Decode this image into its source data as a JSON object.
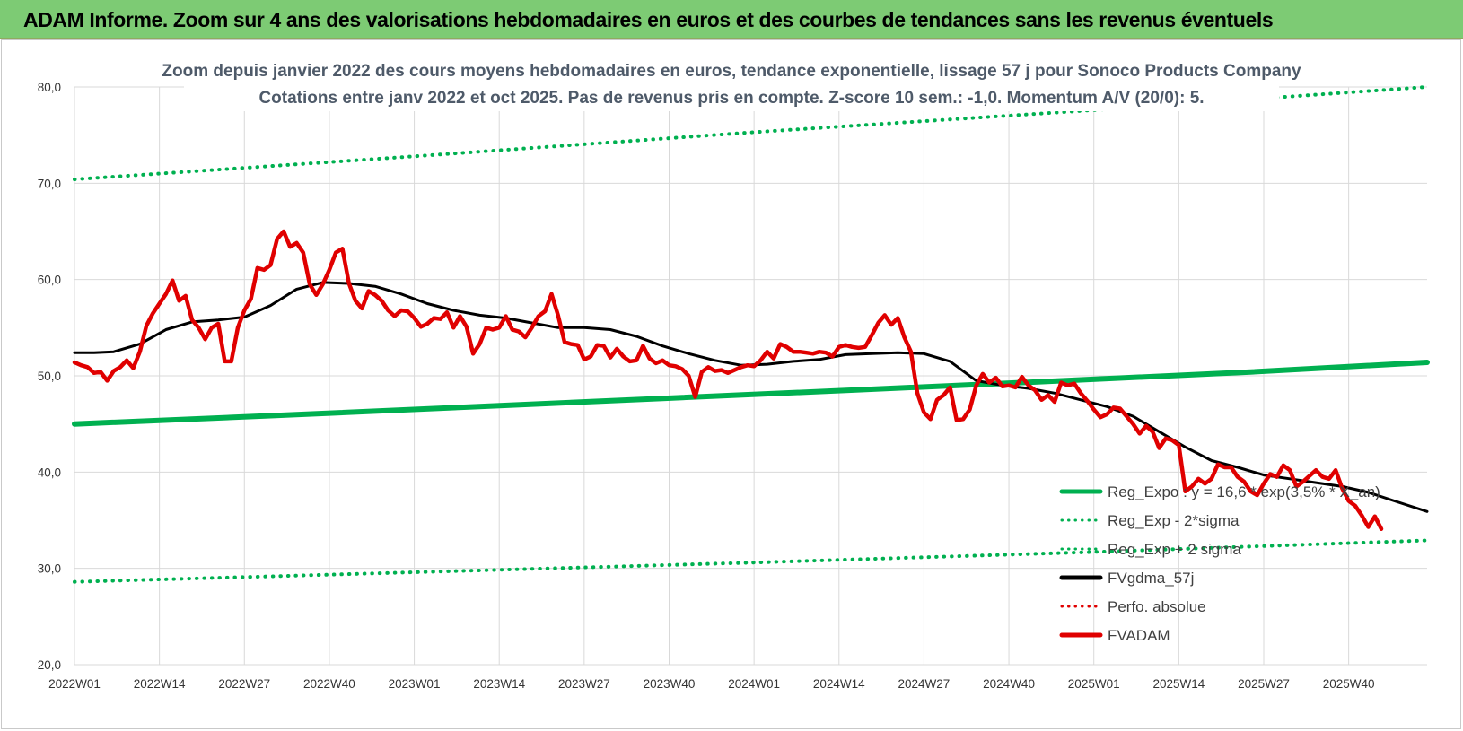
{
  "header": {
    "title": "ADAM Informe. Zoom sur 4 ans des valorisations hebdomadaires en euros et des courbes de tendances sans les revenus éventuels"
  },
  "chart_data": {
    "type": "line",
    "title": "Zoom depuis janvier 2022 des cours moyens hebdomadaires en euros, tendance exponentielle, lissage 57 j pour Sonoco Products Company",
    "subtitle": "Cotations entre janv 2022 et oct 2025. Pas de revenus pris en compte. Z-score 10 sem.: -1,0. Momentum A/V (20/0): 5.",
    "xlabel": "",
    "ylabel": "",
    "ylim": [
      20,
      80
    ],
    "y_ticks": [
      "20,0",
      "30,0",
      "40,0",
      "50,0",
      "60,0",
      "70,0",
      "80,0"
    ],
    "x_ticks": [
      "2022W01",
      "2022W14",
      "2022W27",
      "2022W40",
      "2023W01",
      "2023W14",
      "2023W27",
      "2023W40",
      "2024W01",
      "2024W14",
      "2024W27",
      "2024W40",
      "2025W01",
      "2025W14",
      "2025W27",
      "2025W40"
    ],
    "grid": true,
    "legend_position": "bottom-right",
    "legend": [
      {
        "label": "Reg_Expo : y = 16,6 * exp(3,5% * X_an)",
        "style": "solid",
        "color": "#00b050"
      },
      {
        "label": "Reg_Exp - 2*sigma",
        "style": "dotted",
        "color": "#00b050"
      },
      {
        "label": "Reg_Exp + 2 sigma",
        "style": "dotted",
        "color": "#00b050"
      },
      {
        "label": "FVgdma_57j",
        "style": "solid",
        "color": "#000000"
      },
      {
        "label": "Perfo. absolue",
        "style": "dotted",
        "color": "#e00000"
      },
      {
        "label": "FVADAM",
        "style": "solid",
        "color": "#e00000"
      }
    ],
    "series": [
      {
        "name": "Reg_Expo : y = 16,6 * exp(3,5% * X_an)",
        "points": [
          [
            0,
            45.0
          ],
          [
            30,
            45.85
          ],
          [
            60,
            46.75
          ],
          [
            90,
            47.65
          ],
          [
            120,
            48.55
          ],
          [
            150,
            49.45
          ],
          [
            180,
            50.4
          ],
          [
            207,
            51.4
          ]
        ]
      },
      {
        "name": "Reg_Exp - 2*sigma",
        "points": [
          [
            0,
            28.6
          ],
          [
            52,
            29.6
          ],
          [
            104,
            30.6
          ],
          [
            156,
            31.7
          ],
          [
            207,
            32.9
          ]
        ]
      },
      {
        "name": "Reg_Exp + 2 sigma",
        "points": [
          [
            0,
            70.4
          ],
          [
            52,
            72.8
          ],
          [
            104,
            75.3
          ],
          [
            156,
            77.6
          ],
          [
            207,
            80.0
          ]
        ]
      },
      {
        "name": "FVgdma_57j",
        "points": [
          [
            0,
            52.4
          ],
          [
            3,
            52.4
          ],
          [
            6,
            52.5
          ],
          [
            10,
            53.3
          ],
          [
            14,
            54.8
          ],
          [
            18,
            55.6
          ],
          [
            22,
            55.8
          ],
          [
            26,
            56.1
          ],
          [
            30,
            57.3
          ],
          [
            34,
            59.0
          ],
          [
            38,
            59.7
          ],
          [
            42,
            59.6
          ],
          [
            46,
            59.3
          ],
          [
            50,
            58.5
          ],
          [
            54,
            57.5
          ],
          [
            58,
            56.8
          ],
          [
            62,
            56.3
          ],
          [
            66,
            56.0
          ],
          [
            70,
            55.5
          ],
          [
            74,
            55.0
          ],
          [
            78,
            55.0
          ],
          [
            82,
            54.8
          ],
          [
            86,
            54.1
          ],
          [
            90,
            53.1
          ],
          [
            94,
            52.3
          ],
          [
            98,
            51.6
          ],
          [
            102,
            51.1
          ],
          [
            106,
            51.2
          ],
          [
            110,
            51.5
          ],
          [
            114,
            51.7
          ],
          [
            118,
            52.2
          ],
          [
            122,
            52.3
          ],
          [
            126,
            52.4
          ],
          [
            130,
            52.3
          ],
          [
            134,
            51.5
          ],
          [
            138,
            49.5
          ],
          [
            142,
            49.0
          ],
          [
            146,
            48.7
          ],
          [
            150,
            48.2
          ],
          [
            154,
            47.5
          ],
          [
            158,
            46.8
          ],
          [
            162,
            45.8
          ],
          [
            166,
            44.2
          ],
          [
            170,
            42.6
          ],
          [
            174,
            41.2
          ],
          [
            178,
            40.5
          ],
          [
            182,
            39.7
          ],
          [
            186,
            39.3
          ],
          [
            190,
            38.9
          ],
          [
            194,
            38.5
          ],
          [
            198,
            37.9
          ],
          [
            202,
            37.0
          ],
          [
            207,
            35.9
          ]
        ]
      },
      {
        "name": "FVADAM",
        "points": [
          [
            0,
            51.4
          ],
          [
            1,
            51.1
          ],
          [
            2,
            50.9
          ],
          [
            3,
            50.3
          ],
          [
            4,
            50.4
          ],
          [
            5,
            49.5
          ],
          [
            6,
            50.5
          ],
          [
            7,
            50.9
          ],
          [
            8,
            51.6
          ],
          [
            9,
            50.8
          ],
          [
            10,
            52.5
          ],
          [
            11,
            55.2
          ],
          [
            12,
            56.5
          ],
          [
            13,
            57.5
          ],
          [
            14,
            58.5
          ],
          [
            15,
            59.9
          ],
          [
            16,
            57.8
          ],
          [
            17,
            58.3
          ],
          [
            18,
            55.8
          ],
          [
            19,
            55.0
          ],
          [
            20,
            53.8
          ],
          [
            21,
            55.0
          ],
          [
            22,
            55.4
          ],
          [
            23,
            51.5
          ],
          [
            24,
            51.5
          ],
          [
            25,
            55.0
          ],
          [
            26,
            56.8
          ],
          [
            27,
            58.0
          ],
          [
            28,
            61.2
          ],
          [
            29,
            61.0
          ],
          [
            30,
            61.5
          ],
          [
            31,
            64.2
          ],
          [
            32,
            65.0
          ],
          [
            33,
            63.4
          ],
          [
            34,
            63.8
          ],
          [
            35,
            62.8
          ],
          [
            36,
            59.5
          ],
          [
            37,
            58.4
          ],
          [
            38,
            59.5
          ],
          [
            39,
            61.0
          ],
          [
            40,
            62.8
          ],
          [
            41,
            63.2
          ],
          [
            42,
            59.6
          ],
          [
            43,
            57.8
          ],
          [
            44,
            57.0
          ],
          [
            45,
            58.8
          ],
          [
            46,
            58.4
          ],
          [
            47,
            57.8
          ],
          [
            48,
            56.8
          ],
          [
            49,
            56.2
          ],
          [
            50,
            56.8
          ],
          [
            51,
            56.7
          ],
          [
            52,
            56.0
          ],
          [
            53,
            55.1
          ],
          [
            54,
            55.4
          ],
          [
            55,
            56.0
          ],
          [
            56,
            55.9
          ],
          [
            57,
            56.6
          ],
          [
            58,
            55.0
          ],
          [
            59,
            56.2
          ],
          [
            60,
            55.1
          ],
          [
            61,
            52.3
          ],
          [
            62,
            53.3
          ],
          [
            63,
            55.0
          ],
          [
            64,
            54.8
          ],
          [
            65,
            55.0
          ],
          [
            66,
            56.2
          ],
          [
            67,
            54.8
          ],
          [
            68,
            54.6
          ],
          [
            69,
            54.0
          ],
          [
            70,
            55.0
          ],
          [
            71,
            56.2
          ],
          [
            72,
            56.7
          ],
          [
            73,
            58.5
          ],
          [
            74,
            56.3
          ],
          [
            75,
            53.5
          ],
          [
            76,
            53.3
          ],
          [
            77,
            53.2
          ],
          [
            78,
            51.7
          ],
          [
            79,
            52.0
          ],
          [
            80,
            53.2
          ],
          [
            81,
            53.1
          ],
          [
            82,
            51.9
          ],
          [
            83,
            52.8
          ],
          [
            84,
            52.0
          ],
          [
            85,
            51.5
          ],
          [
            86,
            51.6
          ],
          [
            87,
            53.1
          ],
          [
            88,
            51.8
          ],
          [
            89,
            51.3
          ],
          [
            90,
            51.6
          ],
          [
            91,
            51.1
          ],
          [
            92,
            51.0
          ],
          [
            93,
            50.7
          ],
          [
            94,
            50.0
          ],
          [
            95,
            47.8
          ],
          [
            96,
            50.4
          ],
          [
            97,
            50.9
          ],
          [
            98,
            50.5
          ],
          [
            99,
            50.6
          ],
          [
            100,
            50.3
          ],
          [
            101,
            50.6
          ],
          [
            102,
            50.9
          ],
          [
            103,
            51.1
          ],
          [
            104,
            51.0
          ],
          [
            105,
            51.6
          ],
          [
            106,
            52.5
          ],
          [
            107,
            51.8
          ],
          [
            108,
            53.3
          ],
          [
            109,
            53.0
          ],
          [
            110,
            52.5
          ],
          [
            111,
            52.5
          ],
          [
            112,
            52.4
          ],
          [
            113,
            52.3
          ],
          [
            114,
            52.5
          ],
          [
            115,
            52.4
          ],
          [
            116,
            52.0
          ],
          [
            117,
            53.0
          ],
          [
            118,
            53.2
          ],
          [
            119,
            53.0
          ],
          [
            120,
            52.9
          ],
          [
            121,
            53.0
          ],
          [
            122,
            54.2
          ],
          [
            123,
            55.5
          ],
          [
            124,
            56.3
          ],
          [
            125,
            55.3
          ],
          [
            126,
            56.0
          ],
          [
            127,
            54.0
          ],
          [
            128,
            52.5
          ],
          [
            129,
            48.2
          ],
          [
            130,
            46.2
          ],
          [
            131,
            45.5
          ],
          [
            132,
            47.5
          ],
          [
            133,
            48.0
          ],
          [
            134,
            48.8
          ],
          [
            135,
            45.4
          ],
          [
            136,
            45.5
          ],
          [
            137,
            46.5
          ],
          [
            138,
            49.0
          ],
          [
            139,
            50.2
          ],
          [
            140,
            49.3
          ],
          [
            141,
            49.8
          ],
          [
            142,
            48.9
          ],
          [
            143,
            49.0
          ],
          [
            144,
            48.8
          ],
          [
            145,
            49.9
          ],
          [
            146,
            49.0
          ],
          [
            147,
            48.5
          ],
          [
            148,
            47.5
          ],
          [
            149,
            48.0
          ],
          [
            150,
            47.3
          ],
          [
            151,
            49.3
          ],
          [
            152,
            49.0
          ],
          [
            153,
            49.2
          ],
          [
            154,
            48.2
          ],
          [
            155,
            47.4
          ],
          [
            156,
            46.5
          ],
          [
            157,
            45.7
          ],
          [
            158,
            46.0
          ],
          [
            159,
            46.7
          ],
          [
            160,
            46.6
          ],
          [
            161,
            45.8
          ],
          [
            162,
            45.0
          ],
          [
            163,
            44.0
          ],
          [
            164,
            44.8
          ],
          [
            165,
            44.2
          ],
          [
            166,
            42.5
          ],
          [
            167,
            43.5
          ],
          [
            168,
            43.3
          ],
          [
            169,
            42.8
          ],
          [
            170,
            38.0
          ],
          [
            171,
            38.5
          ],
          [
            172,
            39.3
          ],
          [
            173,
            38.8
          ],
          [
            174,
            39.3
          ],
          [
            175,
            40.8
          ],
          [
            176,
            40.5
          ],
          [
            177,
            40.5
          ],
          [
            178,
            39.5
          ],
          [
            179,
            39.0
          ],
          [
            180,
            38.0
          ],
          [
            181,
            37.6
          ],
          [
            182,
            38.8
          ],
          [
            183,
            39.8
          ],
          [
            184,
            39.5
          ],
          [
            185,
            40.7
          ],
          [
            186,
            40.2
          ],
          [
            187,
            38.5
          ],
          [
            188,
            39.0
          ],
          [
            189,
            39.6
          ],
          [
            190,
            40.2
          ],
          [
            191,
            39.5
          ],
          [
            192,
            39.3
          ],
          [
            193,
            40.2
          ],
          [
            194,
            38.3
          ],
          [
            195,
            37.0
          ],
          [
            196,
            36.5
          ],
          [
            197,
            35.5
          ],
          [
            198,
            34.3
          ],
          [
            199,
            35.4
          ],
          [
            200,
            34.1
          ]
        ]
      }
    ]
  },
  "colors": {
    "banner_bg": "#7dcb74",
    "reg_green": "#00b050",
    "price_red": "#e00000",
    "ma_black": "#000000",
    "grid": "#d9d9d9"
  }
}
